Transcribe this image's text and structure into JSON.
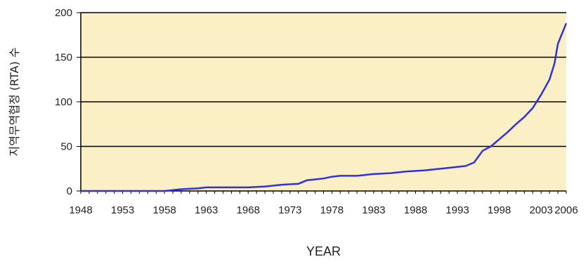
{
  "chart_data": {
    "type": "line",
    "title": "",
    "xlabel": "YEAR",
    "ylabel": "지역무역협정 (RTA) 수",
    "xlim": [
      1948,
      2006
    ],
    "ylim": [
      0,
      200
    ],
    "x_ticks": [
      1948,
      1953,
      1958,
      1963,
      1968,
      1973,
      1978,
      1983,
      1988,
      1993,
      1998,
      2003,
      2006
    ],
    "y_ticks": [
      0,
      50,
      100,
      150,
      200
    ],
    "grid": "horizontal",
    "legend": "none",
    "colors": {
      "plot_background": "#fbefc6",
      "line": "#3030e0",
      "gridline": "#000000"
    },
    "series": [
      {
        "x": [
          1948,
          1958,
          1959,
          1960,
          1962,
          1963,
          1965,
          1968,
          1970,
          1971,
          1972,
          1974,
          1975,
          1976,
          1977,
          1978,
          1979,
          1981,
          1983,
          1985,
          1987,
          1989,
          1990,
          1992,
          1994,
          1995,
          1996,
          1997,
          1998,
          1999,
          2000,
          2001,
          2002,
          2003,
          2004,
          2004.6,
          2005,
          2006
        ],
        "y": [
          0,
          0,
          1,
          2,
          3,
          4,
          4,
          4,
          5,
          6,
          7,
          8,
          12,
          13,
          14,
          16,
          17,
          17,
          19,
          20,
          22,
          23,
          24,
          26,
          28,
          32,
          45,
          50,
          58,
          66,
          75,
          83,
          93,
          108,
          125,
          143,
          165,
          188
        ]
      }
    ]
  }
}
